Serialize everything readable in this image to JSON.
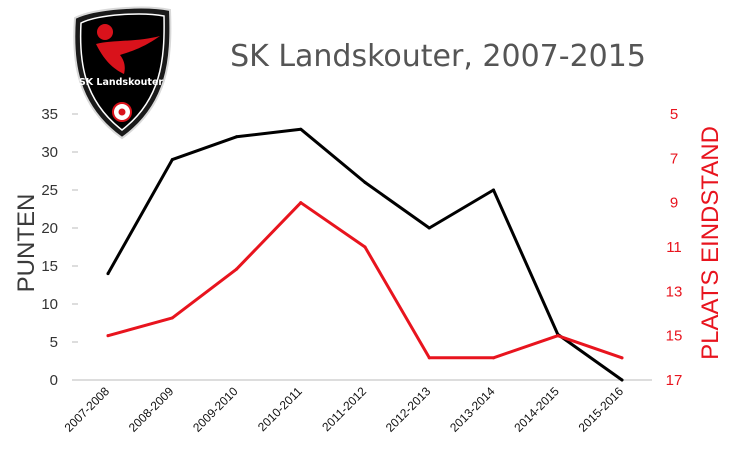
{
  "chart_data": {
    "type": "line",
    "title": "SK Landskouter, 2007-2015",
    "logo_text": "SK Landskouter",
    "categories": [
      "2007-2008",
      "2008-2009",
      "2009-2010",
      "2010-2011",
      "2011-2012",
      "2012-2013",
      "2013-2014",
      "2014-2015",
      "2015-2016"
    ],
    "ylabel": "PUNTEN",
    "ylabel_right": "PLAATS EINDSTAND",
    "ylim": [
      0,
      35
    ],
    "ylim_right": [
      5,
      17
    ],
    "right_axis_inverted": true,
    "y_ticks": [
      "0",
      "5",
      "10",
      "15",
      "20",
      "25",
      "30",
      "35"
    ],
    "y_ticks_right": [
      "5",
      "7",
      "9",
      "11",
      "13",
      "15",
      "17"
    ],
    "grid": false,
    "series": [
      {
        "axis": "left",
        "color": "#000000",
        "values": [
          14,
          29,
          32,
          33,
          26,
          20,
          25,
          6,
          0
        ]
      },
      {
        "axis": "right",
        "color": "#e8141e",
        "values": [
          15,
          14.2,
          12,
          9,
          11,
          16,
          16,
          15,
          16
        ]
      }
    ]
  }
}
